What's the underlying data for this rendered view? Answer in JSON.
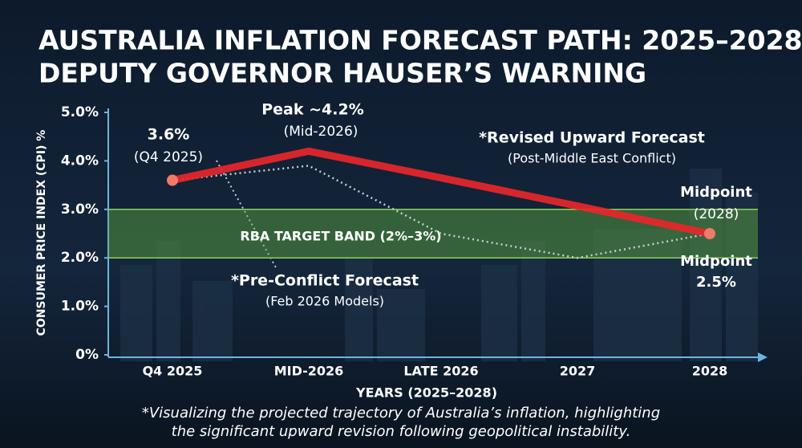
{
  "chart_data": {
    "type": "line",
    "title": [
      "AUSTRALIA INFLATION FORECAST PATH: 2025–2028",
      "DEPUTY GOVERNOR HAUSER’S WARNING"
    ],
    "y_label": "CONSUMER PRICE INDEX (CPI) %",
    "x_label": "YEARS (2025–2028)",
    "categories": [
      "Q4 2025",
      "MID-2026",
      "LATE 2026",
      "2027",
      "2028"
    ],
    "ylim": [
      0,
      5
    ],
    "yticks": [
      {
        "value": 0,
        "label": "0%"
      },
      {
        "value": 1,
        "label": "1.0%"
      },
      {
        "value": 2,
        "label": "2.0%"
      },
      {
        "value": 3,
        "label": "3.0%"
      },
      {
        "value": 4,
        "label": "4.0%"
      },
      {
        "value": 5,
        "label": "5.0%"
      }
    ],
    "band": {
      "label": "RBA TARGET BAND (2%–3%)",
      "range": [
        2,
        3
      ],
      "color": "#5fae3c"
    },
    "series": [
      {
        "name": "*Revised Upward Forecast",
        "color": "#e8262b",
        "values": [
          3.6,
          4.2,
          3.65,
          3.07,
          2.5
        ],
        "value_labels": [
          "3.6%",
          "Peak ~4.2%",
          null,
          null,
          "2.5%"
        ]
      },
      {
        "name": "*Pre-Conflict Forecast",
        "color": "#c8ccd2",
        "values": [
          3.6,
          3.9,
          2.5,
          2.0,
          2.5
        ]
      }
    ],
    "annotations": [
      "(Q4 2025)",
      "(Mid-2026)",
      "(Post-Middle East Conflict)",
      "Midpoint",
      "(2028)",
      "Midpoint",
      "(Feb 2026 Models)"
    ],
    "footnote": [
      "*Visualizing the projected trajectory of Australia’s inflation, highlighting",
      "the significant upward revision following geopolitical instability."
    ]
  }
}
